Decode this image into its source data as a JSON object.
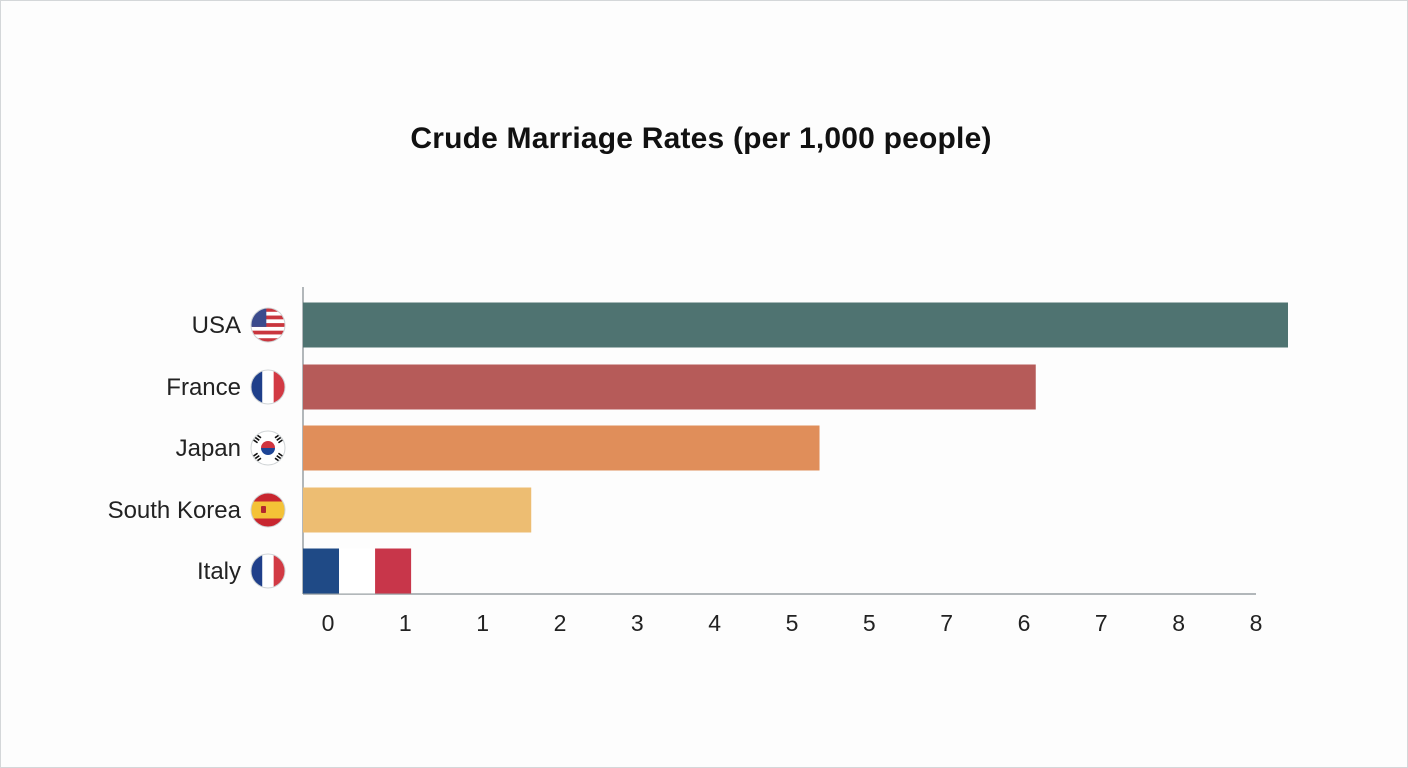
{
  "chart_data": {
    "type": "bar",
    "orientation": "horizontal",
    "title": "Crude Marriage Rates (per 1,000 people)",
    "xlabel": "",
    "ylabel": "",
    "categories": [
      "USA",
      "France",
      "Japan",
      "South Korea",
      "Italy"
    ],
    "values": [
      8.2,
      6.1,
      4.3,
      1.9,
      0.9
    ],
    "flags": [
      "us-flag-icon",
      "france-flag-icon",
      "south-korea-flag-icon",
      "spain-flag-icon",
      "france-flag-icon"
    ],
    "colors": [
      "#4f7371",
      "#b65b59",
      "#e08e5a",
      "#edbd72",
      "#c8364a"
    ],
    "italy_bar_colors": [
      "#1f4a86",
      "#ffffff",
      "#c8364a"
    ],
    "x_tick_labels": [
      "0",
      "1",
      "1",
      "2",
      "3",
      "4",
      "5",
      "5",
      "7",
      "6",
      "7",
      "8",
      "8"
    ],
    "xlim": [
      0,
      8.2
    ],
    "grid": false,
    "legend": "none"
  }
}
